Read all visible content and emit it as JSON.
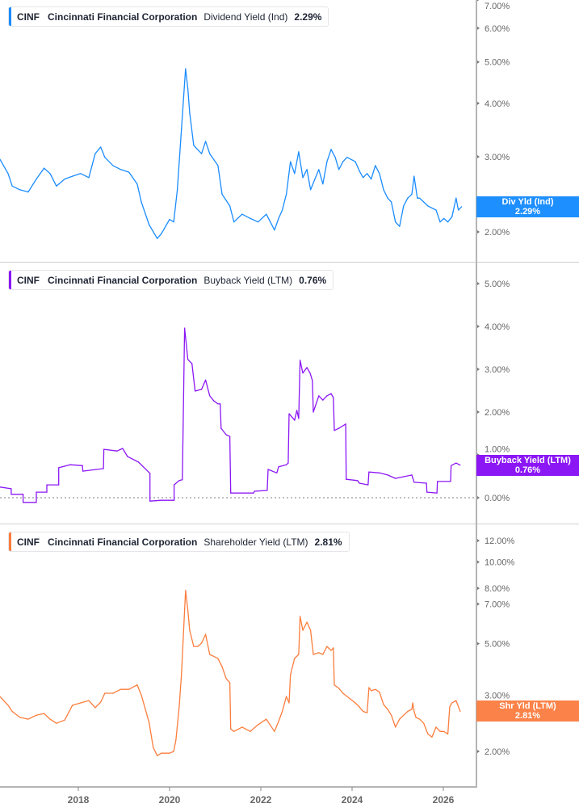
{
  "colors": {
    "dividend": "#1a8cff",
    "buyback": "#8c17f5",
    "shareholder": "#fb7d3d",
    "axis": "#b5b5b5",
    "tick_text": "#666666"
  },
  "chart_data": [
    {
      "type": "line",
      "legend": {
        "ticker": "CINF",
        "company": "Cincinnati Financial Corporation",
        "metric": "Dividend Yield (Ind)",
        "value": "2.29%"
      },
      "tag": {
        "label": "Div Yld (Ind)",
        "value": "2.29%"
      },
      "yscale": "log",
      "ylim": [
        1.8,
        7.2
      ],
      "yticks": [
        "7.00%",
        "6.00%",
        "5.00%",
        "4.00%",
        "3.00%",
        "2.00%"
      ],
      "grid": false,
      "points": [
        [
          2016.28,
          2.96
        ],
        [
          2016.46,
          2.74
        ],
        [
          2016.55,
          2.56
        ],
        [
          2016.72,
          2.51
        ],
        [
          2016.9,
          2.48
        ],
        [
          2017.08,
          2.66
        ],
        [
          2017.25,
          2.82
        ],
        [
          2017.38,
          2.74
        ],
        [
          2017.52,
          2.56
        ],
        [
          2017.7,
          2.66
        ],
        [
          2017.87,
          2.7
        ],
        [
          2018.05,
          2.74
        ],
        [
          2018.23,
          2.68
        ],
        [
          2018.37,
          3.05
        ],
        [
          2018.49,
          3.16
        ],
        [
          2018.58,
          2.99
        ],
        [
          2018.76,
          2.86
        ],
        [
          2018.93,
          2.8
        ],
        [
          2019.11,
          2.76
        ],
        [
          2019.29,
          2.59
        ],
        [
          2019.38,
          2.35
        ],
        [
          2019.55,
          2.08
        ],
        [
          2019.73,
          1.93
        ],
        [
          2019.82,
          1.98
        ],
        [
          2020.0,
          2.14
        ],
        [
          2020.09,
          2.11
        ],
        [
          2020.17,
          2.51
        ],
        [
          2020.26,
          3.48
        ],
        [
          2020.35,
          4.82
        ],
        [
          2020.4,
          4.33
        ],
        [
          2020.44,
          3.8
        ],
        [
          2020.53,
          3.19
        ],
        [
          2020.7,
          3.05
        ],
        [
          2020.79,
          3.26
        ],
        [
          2020.88,
          3.05
        ],
        [
          2021.06,
          2.86
        ],
        [
          2021.15,
          2.45
        ],
        [
          2021.32,
          2.3
        ],
        [
          2021.41,
          2.11
        ],
        [
          2021.59,
          2.2
        ],
        [
          2021.77,
          2.15
        ],
        [
          2021.94,
          2.11
        ],
        [
          2022.12,
          2.2
        ],
        [
          2022.3,
          2.02
        ],
        [
          2022.39,
          2.15
        ],
        [
          2022.47,
          2.25
        ],
        [
          2022.56,
          2.45
        ],
        [
          2022.65,
          2.92
        ],
        [
          2022.74,
          2.74
        ],
        [
          2022.83,
          3.08
        ],
        [
          2022.92,
          2.68
        ],
        [
          2023.01,
          2.8
        ],
        [
          2023.09,
          2.51
        ],
        [
          2023.27,
          2.8
        ],
        [
          2023.36,
          2.59
        ],
        [
          2023.45,
          2.92
        ],
        [
          2023.54,
          3.12
        ],
        [
          2023.63,
          2.99
        ],
        [
          2023.71,
          2.8
        ],
        [
          2023.8,
          2.92
        ],
        [
          2023.89,
          2.99
        ],
        [
          2024.07,
          2.92
        ],
        [
          2024.16,
          2.78
        ],
        [
          2024.24,
          2.68
        ],
        [
          2024.33,
          2.74
        ],
        [
          2024.42,
          2.66
        ],
        [
          2024.51,
          2.86
        ],
        [
          2024.6,
          2.74
        ],
        [
          2024.69,
          2.51
        ],
        [
          2024.78,
          2.4
        ],
        [
          2024.86,
          2.35
        ],
        [
          2024.95,
          2.11
        ],
        [
          2025.04,
          2.06
        ],
        [
          2025.13,
          2.3
        ],
        [
          2025.22,
          2.4
        ],
        [
          2025.31,
          2.45
        ],
        [
          2025.36,
          2.7
        ],
        [
          2025.43,
          2.4
        ],
        [
          2025.48,
          2.4
        ],
        [
          2025.57,
          2.35
        ],
        [
          2025.66,
          2.3
        ],
        [
          2025.84,
          2.25
        ],
        [
          2025.93,
          2.11
        ],
        [
          2026.01,
          2.15
        ],
        [
          2026.1,
          2.11
        ],
        [
          2026.19,
          2.17
        ],
        [
          2026.28,
          2.4
        ],
        [
          2026.33,
          2.25
        ],
        [
          2026.4,
          2.29
        ]
      ]
    },
    {
      "type": "line",
      "legend": {
        "ticker": "CINF",
        "company": "Cincinnati Financial Corporation",
        "metric": "Buyback Yield (LTM)",
        "value": "0.76%"
      },
      "tag": {
        "label": "Buyback Yield (LTM)",
        "value": "0.76%"
      },
      "yscale": "linear",
      "ylim": [
        -0.3,
        5.3
      ],
      "yticks": [
        "5.00%",
        "4.00%",
        "3.00%",
        "2.00%",
        "1.00%",
        "0.00%"
      ],
      "zero_line": "dotted",
      "grid": false,
      "points": [
        [
          2016.28,
          0.25
        ],
        [
          2016.53,
          0.21
        ],
        [
          2016.53,
          0.08
        ],
        [
          2016.79,
          0.08
        ],
        [
          2016.79,
          -0.11
        ],
        [
          2017.08,
          -0.11
        ],
        [
          2017.08,
          0.13
        ],
        [
          2017.31,
          0.13
        ],
        [
          2017.31,
          0.3
        ],
        [
          2017.57,
          0.3
        ],
        [
          2017.57,
          0.7
        ],
        [
          2017.82,
          0.77
        ],
        [
          2018.09,
          0.75
        ],
        [
          2018.1,
          0.62
        ],
        [
          2018.55,
          0.68
        ],
        [
          2018.56,
          1.13
        ],
        [
          2018.85,
          1.09
        ],
        [
          2018.97,
          1.15
        ],
        [
          2019.08,
          0.96
        ],
        [
          2019.32,
          0.83
        ],
        [
          2019.57,
          0.57
        ],
        [
          2019.57,
          -0.08
        ],
        [
          2019.82,
          -0.06
        ],
        [
          2020.1,
          -0.06
        ],
        [
          2020.1,
          0.3
        ],
        [
          2020.21,
          0.4
        ],
        [
          2020.28,
          0.42
        ],
        [
          2020.33,
          3.96
        ],
        [
          2020.4,
          3.23
        ],
        [
          2020.49,
          3.13
        ],
        [
          2020.56,
          2.49
        ],
        [
          2020.7,
          2.53
        ],
        [
          2020.79,
          2.75
        ],
        [
          2020.88,
          2.38
        ],
        [
          2020.97,
          2.26
        ],
        [
          2021.06,
          2.19
        ],
        [
          2021.11,
          2.19
        ],
        [
          2021.13,
          1.62
        ],
        [
          2021.24,
          1.47
        ],
        [
          2021.32,
          1.43
        ],
        [
          2021.34,
          0.11
        ],
        [
          2021.59,
          0.11
        ],
        [
          2021.84,
          0.11
        ],
        [
          2021.86,
          0.15
        ],
        [
          2022.14,
          0.17
        ],
        [
          2022.16,
          0.66
        ],
        [
          2022.35,
          0.58
        ],
        [
          2022.39,
          0.72
        ],
        [
          2022.56,
          0.77
        ],
        [
          2022.6,
          0.81
        ],
        [
          2022.62,
          1.96
        ],
        [
          2022.74,
          1.81
        ],
        [
          2022.79,
          2.04
        ],
        [
          2022.83,
          1.85
        ],
        [
          2022.86,
          3.21
        ],
        [
          2022.92,
          2.91
        ],
        [
          2023.01,
          3.04
        ],
        [
          2023.08,
          2.91
        ],
        [
          2023.13,
          2.74
        ],
        [
          2023.15,
          2.0
        ],
        [
          2023.27,
          2.38
        ],
        [
          2023.36,
          2.28
        ],
        [
          2023.45,
          2.38
        ],
        [
          2023.54,
          2.43
        ],
        [
          2023.59,
          2.34
        ],
        [
          2023.61,
          1.57
        ],
        [
          2023.71,
          1.62
        ],
        [
          2023.8,
          1.68
        ],
        [
          2023.86,
          1.72
        ],
        [
          2023.87,
          0.43
        ],
        [
          2024.12,
          0.4
        ],
        [
          2024.16,
          0.34
        ],
        [
          2024.35,
          0.3
        ],
        [
          2024.37,
          0.6
        ],
        [
          2024.6,
          0.58
        ],
        [
          2024.78,
          0.53
        ],
        [
          2024.95,
          0.45
        ],
        [
          2025.13,
          0.49
        ],
        [
          2025.31,
          0.53
        ],
        [
          2025.36,
          0.36
        ],
        [
          2025.63,
          0.34
        ],
        [
          2025.64,
          0.13
        ],
        [
          2025.86,
          0.11
        ],
        [
          2025.87,
          0.38
        ],
        [
          2026.16,
          0.38
        ],
        [
          2026.17,
          0.75
        ],
        [
          2026.28,
          0.81
        ],
        [
          2026.37,
          0.76
        ]
      ]
    },
    {
      "type": "line",
      "legend": {
        "ticker": "CINF",
        "company": "Cincinnati Financial Corporation",
        "metric": "Shareholder Yield (LTM)",
        "value": "2.81%"
      },
      "tag": {
        "label": "Shr Yld (LTM)",
        "value": "2.81%"
      },
      "yscale": "log",
      "ylim": [
        1.7,
        13
      ],
      "yticks": [
        "12.00%",
        "10.00%",
        "8.00%",
        "7.00%",
        "5.00%",
        "3.00%",
        "2.00%"
      ],
      "grid": false,
      "points": [
        [
          2016.28,
          3.19
        ],
        [
          2016.46,
          2.96
        ],
        [
          2016.55,
          2.81
        ],
        [
          2016.72,
          2.67
        ],
        [
          2016.9,
          2.63
        ],
        [
          2017.08,
          2.72
        ],
        [
          2017.25,
          2.76
        ],
        [
          2017.38,
          2.63
        ],
        [
          2017.52,
          2.54
        ],
        [
          2017.7,
          2.61
        ],
        [
          2017.87,
          2.96
        ],
        [
          2018.05,
          3.02
        ],
        [
          2018.23,
          3.08
        ],
        [
          2018.37,
          2.9
        ],
        [
          2018.49,
          3.04
        ],
        [
          2018.58,
          3.28
        ],
        [
          2018.76,
          3.28
        ],
        [
          2018.93,
          3.39
        ],
        [
          2019.11,
          3.39
        ],
        [
          2019.29,
          3.52
        ],
        [
          2019.38,
          3.23
        ],
        [
          2019.55,
          2.56
        ],
        [
          2019.64,
          2.07
        ],
        [
          2019.73,
          1.93
        ],
        [
          2019.82,
          1.97
        ],
        [
          2020.0,
          1.97
        ],
        [
          2020.09,
          2.0
        ],
        [
          2020.14,
          2.21
        ],
        [
          2020.21,
          2.92
        ],
        [
          2020.26,
          3.84
        ],
        [
          2020.35,
          7.85
        ],
        [
          2020.4,
          6.65
        ],
        [
          2020.44,
          5.6
        ],
        [
          2020.53,
          4.88
        ],
        [
          2020.62,
          4.88
        ],
        [
          2020.7,
          5.02
        ],
        [
          2020.79,
          5.41
        ],
        [
          2020.88,
          4.56
        ],
        [
          2021.06,
          4.41
        ],
        [
          2021.15,
          4.11
        ],
        [
          2021.24,
          3.71
        ],
        [
          2021.32,
          3.59
        ],
        [
          2021.34,
          2.42
        ],
        [
          2021.41,
          2.37
        ],
        [
          2021.59,
          2.46
        ],
        [
          2021.77,
          2.37
        ],
        [
          2021.94,
          2.51
        ],
        [
          2022.12,
          2.63
        ],
        [
          2022.3,
          2.37
        ],
        [
          2022.39,
          2.58
        ],
        [
          2022.47,
          2.81
        ],
        [
          2022.56,
          3.19
        ],
        [
          2022.62,
          3.02
        ],
        [
          2022.65,
          3.84
        ],
        [
          2022.74,
          4.41
        ],
        [
          2022.83,
          4.56
        ],
        [
          2022.86,
          6.3
        ],
        [
          2022.92,
          5.6
        ],
        [
          2023.01,
          6.0
        ],
        [
          2023.09,
          5.6
        ],
        [
          2023.15,
          4.56
        ],
        [
          2023.27,
          4.63
        ],
        [
          2023.36,
          4.56
        ],
        [
          2023.45,
          4.88
        ],
        [
          2023.54,
          4.72
        ],
        [
          2023.59,
          4.82
        ],
        [
          2023.61,
          3.52
        ],
        [
          2023.71,
          3.42
        ],
        [
          2023.8,
          3.28
        ],
        [
          2023.89,
          3.19
        ],
        [
          2024.07,
          3.02
        ],
        [
          2024.16,
          2.92
        ],
        [
          2024.24,
          2.81
        ],
        [
          2024.33,
          2.78
        ],
        [
          2024.37,
          3.44
        ],
        [
          2024.42,
          3.35
        ],
        [
          2024.51,
          3.39
        ],
        [
          2024.6,
          3.31
        ],
        [
          2024.69,
          2.98
        ],
        [
          2024.78,
          2.86
        ],
        [
          2024.86,
          2.72
        ],
        [
          2024.95,
          2.46
        ],
        [
          2025.04,
          2.63
        ],
        [
          2025.13,
          2.72
        ],
        [
          2025.22,
          2.81
        ],
        [
          2025.31,
          2.86
        ],
        [
          2025.33,
          3.02
        ],
        [
          2025.36,
          2.81
        ],
        [
          2025.4,
          2.67
        ],
        [
          2025.48,
          2.63
        ],
        [
          2025.57,
          2.54
        ],
        [
          2025.66,
          2.32
        ],
        [
          2025.75,
          2.26
        ],
        [
          2025.84,
          2.46
        ],
        [
          2025.93,
          2.37
        ],
        [
          2026.01,
          2.37
        ],
        [
          2026.1,
          2.32
        ],
        [
          2026.14,
          2.92
        ],
        [
          2026.19,
          3.02
        ],
        [
          2026.28,
          3.08
        ],
        [
          2026.37,
          2.81
        ]
      ]
    }
  ],
  "x_axis": {
    "ticks": [
      "2018",
      "2020",
      "2022",
      "2024",
      "2026"
    ],
    "xlim": [
      2016.28,
      2026.72
    ]
  }
}
